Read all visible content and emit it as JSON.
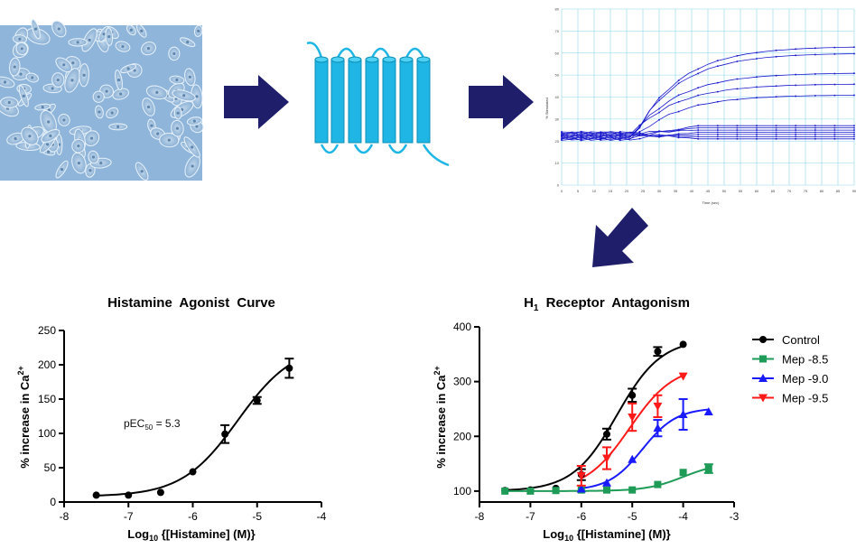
{
  "chart_data": [
    {
      "type": "scatter",
      "title": "Histamine Agonist Curve",
      "xlabel": "Log10 {[Histamine] (M)}",
      "ylabel": "% increase in Ca2+",
      "xlim": [
        -8,
        -4
      ],
      "ylim": [
        0,
        250
      ],
      "x_ticks": [
        "-8",
        "-7",
        "-6",
        "-5",
        "-4"
      ],
      "y_ticks": [
        "0",
        "50",
        "100",
        "150",
        "200",
        "250"
      ],
      "annotation": "pEC50 = 5.3",
      "series": [
        {
          "color": "#000000",
          "marker": "circle",
          "points": [
            {
              "x": -7.5,
              "y": 10,
              "err": 0
            },
            {
              "x": -7.0,
              "y": 10,
              "err": 0
            },
            {
              "x": -6.5,
              "y": 14,
              "err": 0
            },
            {
              "x": -6.0,
              "y": 44,
              "err": 0
            },
            {
              "x": -5.5,
              "y": 99,
              "err": 13
            },
            {
              "x": -5.0,
              "y": 148,
              "err": 5
            },
            {
              "x": -4.5,
              "y": 195,
              "err": 14
            }
          ],
          "fit": {
            "bottom": 8,
            "top": 230,
            "logEC50": -5.3,
            "hill": 1.0
          }
        }
      ]
    },
    {
      "type": "scatter",
      "title": "H1 Receptor Antagonism",
      "xlabel": "Log10 {[Histamine] (M)}",
      "ylabel": "% increase in Ca2+",
      "xlim": [
        -8,
        -3
      ],
      "ylim": [
        80,
        400
      ],
      "x_ticks": [
        "-8",
        "-7",
        "-6",
        "-5",
        "-4",
        "-3"
      ],
      "y_ticks": [
        "100",
        "200",
        "300",
        "400"
      ],
      "legend_position": "right",
      "series": [
        {
          "name": "Control",
          "color": "#000000",
          "marker": "circle",
          "points": [
            {
              "x": -7.5,
              "y": 101,
              "err": 0
            },
            {
              "x": -7.0,
              "y": 102,
              "err": 0
            },
            {
              "x": -6.5,
              "y": 105,
              "err": 0
            },
            {
              "x": -6.0,
              "y": 130,
              "err": 10
            },
            {
              "x": -5.5,
              "y": 204,
              "err": 10
            },
            {
              "x": -5.0,
              "y": 275,
              "err": 12
            },
            {
              "x": -4.5,
              "y": 355,
              "err": 8
            },
            {
              "x": -4.0,
              "y": 368,
              "err": 0
            }
          ],
          "fit": {
            "bottom": 100,
            "top": 378,
            "logEC50": -5.3,
            "hill": 1.0
          }
        },
        {
          "name": "Mep -8.5",
          "color": "#1e9b57",
          "marker": "square",
          "points": [
            {
              "x": -7.5,
              "y": 100,
              "err": 0
            },
            {
              "x": -7.0,
              "y": 100,
              "err": 0
            },
            {
              "x": -6.5,
              "y": 101,
              "err": 0
            },
            {
              "x": -6.0,
              "y": 102,
              "err": 0
            },
            {
              "x": -5.5,
              "y": 102,
              "err": 0
            },
            {
              "x": -5.0,
              "y": 102,
              "err": 0
            },
            {
              "x": -4.5,
              "y": 112,
              "err": 0
            },
            {
              "x": -4.0,
              "y": 134,
              "err": 0
            },
            {
              "x": -3.5,
              "y": 141,
              "err": 8
            }
          ],
          "fit": {
            "bottom": 100,
            "top": 152,
            "logEC50": -4.0,
            "hill": 1.2
          }
        },
        {
          "name": "Mep -9.0",
          "color": "#1a1aff",
          "marker": "triangle-up",
          "points": [
            {
              "x": -6.0,
              "y": 104,
              "err": 0
            },
            {
              "x": -5.5,
              "y": 115,
              "err": 0
            },
            {
              "x": -5.0,
              "y": 158,
              "err": 0
            },
            {
              "x": -4.5,
              "y": 215,
              "err": 15
            },
            {
              "x": -4.0,
              "y": 240,
              "err": 28
            },
            {
              "x": -3.5,
              "y": 245,
              "err": 0
            }
          ],
          "fit": {
            "bottom": 101,
            "top": 252,
            "logEC50": -4.8,
            "hill": 1.3
          }
        },
        {
          "name": "Mep -9.5",
          "color": "#ff1a1a",
          "marker": "triangle-down",
          "points": [
            {
              "x": -6.0,
              "y": 128,
              "err": 18
            },
            {
              "x": -5.5,
              "y": 160,
              "err": 20
            },
            {
              "x": -5.0,
              "y": 235,
              "err": 25
            },
            {
              "x": -4.5,
              "y": 255,
              "err": 20
            },
            {
              "x": -4.0,
              "y": 310,
              "err": 0
            }
          ],
          "fit": {
            "bottom": 100,
            "top": 330,
            "logEC50": -5.05,
            "hill": 1.0
          }
        }
      ]
    }
  ],
  "calcium_trace": {
    "x_ticks": [
      "0",
      "5",
      "10",
      "15",
      "20",
      "25",
      "30",
      "35",
      "40",
      "45",
      "50",
      "55",
      "60",
      "65",
      "70",
      "75",
      "80",
      "85",
      "90"
    ],
    "y_ticks": [
      "0",
      "10",
      "20",
      "30",
      "40",
      "50",
      "60",
      "70",
      "80"
    ],
    "xlabel": "Time (sec)",
    "ylabel": "% Stimulated",
    "color": "#1a1acc"
  },
  "colors": {
    "arrow_fill": "#1f1e6b",
    "receptor_fill": "#1fb6e6",
    "receptor_stroke": "#0e8fb6",
    "cells_bg": "#8db4d8"
  },
  "icons": [
    "cell-culture-image",
    "gpcr-receptor-icon",
    "process-arrow-icon"
  ]
}
